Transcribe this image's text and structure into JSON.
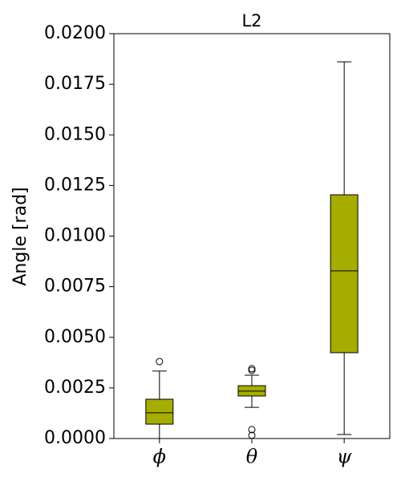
{
  "chart_data": {
    "type": "box",
    "title": "L2",
    "y_label": "Angle [rad]",
    "categories": [
      "ϕ",
      "θ",
      "ψ"
    ],
    "color": "#a4ad00",
    "boxes": [
      {
        "whislo": 0.0,
        "q1": 0.00071,
        "med": 0.00127,
        "q3": 0.00194,
        "whishi": 0.00333,
        "fliers": [
          0.0038
        ]
      },
      {
        "whislo": 0.00154,
        "q1": 0.0021,
        "med": 0.00234,
        "q3": 0.00261,
        "whishi": 0.00313,
        "fliers": [
          0.00345,
          0.00337,
          0.00044,
          0.00016
        ]
      },
      {
        "whislo": 0.0002,
        "q1": 0.00424,
        "med": 0.00828,
        "q3": 0.01204,
        "whishi": 0.01861,
        "fliers": []
      }
    ],
    "ylim": [
      0,
      0.02
    ],
    "yticks": [
      {
        "value": 0,
        "label": "0.0000"
      },
      {
        "value": 0.0025,
        "label": "0.0025"
      },
      {
        "value": 0.005,
        "label": "0.0050"
      },
      {
        "value": 0.0075,
        "label": "0.0075"
      },
      {
        "value": 0.01,
        "label": "0.0100"
      },
      {
        "value": 0.0125,
        "label": "0.0125"
      },
      {
        "value": 0.015,
        "label": "0.0150"
      },
      {
        "value": 0.0175,
        "label": "0.0175"
      },
      {
        "value": 0.02,
        "label": "0.0200"
      }
    ]
  }
}
